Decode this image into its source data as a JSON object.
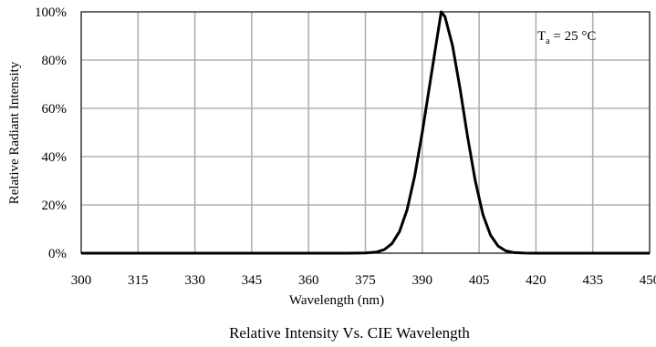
{
  "chart_data": {
    "type": "line",
    "title": "",
    "caption": "Relative Intensity Vs. CIE Wavelength",
    "xlabel": "Wavelength (nm)",
    "ylabel": "Relative Radiant Intensity",
    "xlim": [
      300,
      450
    ],
    "ylim": [
      0,
      100
    ],
    "x_ticks": [
      "300",
      "315",
      "330",
      "345",
      "360",
      "375",
      "390",
      "405",
      "420",
      "435",
      "450"
    ],
    "y_ticks": [
      "0%",
      "20%",
      "40%",
      "60%",
      "80%",
      "100%"
    ],
    "grid": true,
    "annotation": {
      "main": "T",
      "sub": "a",
      "rest": " = 25 °C",
      "placement": "top-right"
    },
    "line_color": "#000000",
    "grid_color": "#b0b0b0",
    "series": [
      {
        "x": [
          300,
          370,
          375,
          378,
          380,
          382,
          384,
          386,
          388,
          390,
          392,
          394,
          395,
          396,
          398,
          400,
          402,
          404,
          406,
          408,
          410,
          412,
          414,
          417,
          420,
          450
        ],
        "y": [
          0,
          0,
          0.1,
          0.5,
          1.5,
          4,
          9,
          18,
          32,
          50,
          70,
          90,
          100,
          98,
          86,
          68,
          48,
          30,
          16,
          7.5,
          3,
          1,
          0.3,
          0.05,
          0,
          0
        ]
      }
    ]
  }
}
